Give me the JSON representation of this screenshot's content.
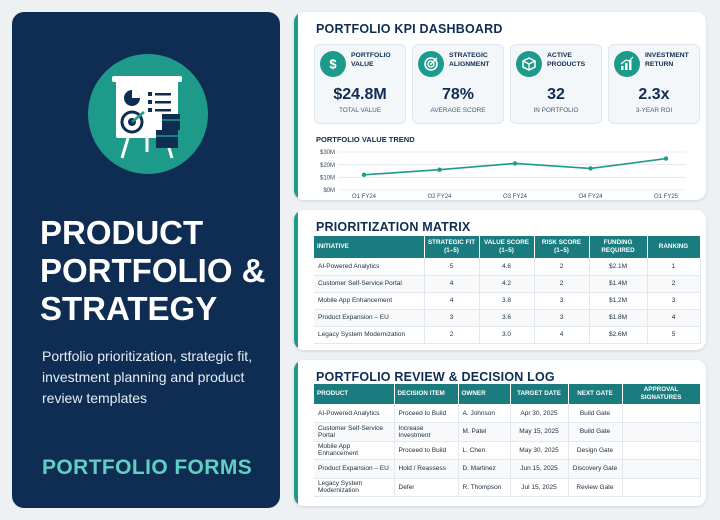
{
  "hero": {
    "title_lines": [
      "PRODUCT",
      "PORTFOLIO &",
      "STRATEGY"
    ],
    "subtitle": "Portfolio prioritization, strategic fit, investment planning and product review templates",
    "footer": "PORTFOLIO FORMS",
    "icon": "presentation-board-target-boxes-icon"
  },
  "kpi": {
    "title": "PORTFOLIO KPI DASHBOARD",
    "cards": [
      {
        "label": "PORTFOLIO VALUE",
        "value": "$24.8M",
        "sub": "TOTAL VALUE",
        "icon": "dollar-icon"
      },
      {
        "label": "STRATEGIC ALIGNMENT",
        "value": "78%",
        "sub": "AVERAGE SCORE",
        "icon": "target-icon"
      },
      {
        "label": "ACTIVE PRODUCTS",
        "value": "32",
        "sub": "IN PORTFOLIO",
        "icon": "box-icon"
      },
      {
        "label": "INVESTMENT RETURN",
        "value": "2.3x",
        "sub": "3-YEAR ROI",
        "icon": "bar-chart-icon"
      }
    ],
    "trend_title": "PORTFOLIO VALUE TREND"
  },
  "chart_data": {
    "type": "line",
    "categories": [
      "Q1 FY24",
      "Q2 FY24",
      "Q3 FY24",
      "Q4 FY24",
      "Q1 FY25"
    ],
    "series": [
      {
        "values": [
          12,
          16,
          21,
          17,
          24.8
        ]
      }
    ],
    "yticks": [
      "$30M",
      "$20M",
      "$10M",
      "$0M"
    ],
    "ylim": [
      0,
      30
    ],
    "grid": true,
    "color": "#1e9a8a"
  },
  "matrix": {
    "title": "PRIORITIZATION MATRIX",
    "headers": [
      "INITIATIVE",
      "STRATEGIC FIT (1–5)",
      "VALUE SCORE (1–5)",
      "RISK SCORE (1–5)",
      "FUNDING REQUIRED",
      "RANKING"
    ],
    "rows": [
      [
        "AI-Powered Analytics",
        "5",
        "4.6",
        "2",
        "$2.1M",
        "1"
      ],
      [
        "Customer Self-Service Portal",
        "4",
        "4.2",
        "2",
        "$1.4M",
        "2"
      ],
      [
        "Mobile App Enhancement",
        "4",
        "3.8",
        "3",
        "$1.2M",
        "3"
      ],
      [
        "Product Expansion – EU",
        "3",
        "3.6",
        "3",
        "$1.8M",
        "4"
      ],
      [
        "Legacy System Modernization",
        "2",
        "3.0",
        "4",
        "$2.6M",
        "5"
      ]
    ]
  },
  "log": {
    "title": "PORTFOLIO REVIEW & DECISION LOG",
    "headers": [
      "PRODUCT",
      "DECISION ITEM",
      "OWNER",
      "TARGET DATE",
      "NEXT GATE",
      "APPROVAL SIGNATURES"
    ],
    "rows": [
      [
        "AI-Powered Analytics",
        "Proceed to Build",
        "A. Johnson",
        "Apr 30, 2025",
        "Build Gate",
        ""
      ],
      [
        "Customer Self-Service Portal",
        "Increase Investment",
        "M. Patel",
        "May 15, 2025",
        "Build Gate",
        ""
      ],
      [
        "Mobile App Enhancement",
        "Proceed to Build",
        "L. Chen",
        "May 30, 2025",
        "Design Gate",
        ""
      ],
      [
        "Product Expansion – EU",
        "Hold / Reassess",
        "D. Martinez",
        "Jun 15, 2025",
        "Discovery Gate",
        ""
      ],
      [
        "Legacy System Modernization",
        "Defer",
        "R. Thompson",
        "Jul 15, 2025",
        "Review Gate",
        ""
      ]
    ]
  },
  "colors": {
    "navy": "#0f2d52",
    "teal": "#1e9a8a",
    "header_teal": "#1b7c7f",
    "accent_text": "#5fd0c4"
  }
}
